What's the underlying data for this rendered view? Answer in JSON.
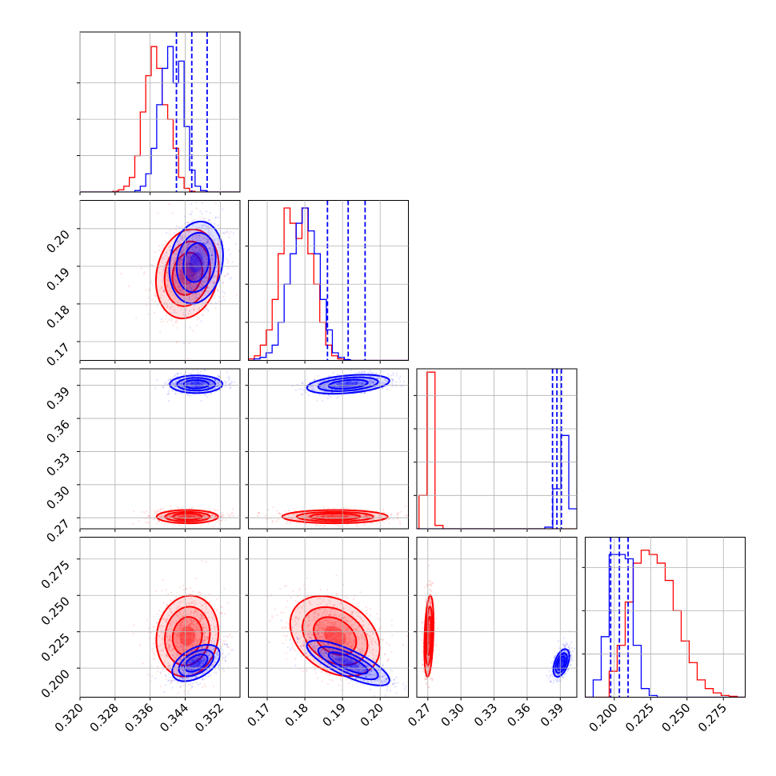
{
  "chart_data": {
    "type": "corner",
    "title": "",
    "grid": true,
    "colors": {
      "red": "#ff0000",
      "blue": "#0000ff"
    },
    "parameters": [
      {
        "range": [
          0.32,
          0.3565
        ],
        "ticks": [
          0.32,
          0.328,
          0.336,
          0.344,
          0.352
        ],
        "tick_labels": [
          "0.320",
          "0.328",
          "0.336",
          "0.344",
          "0.352"
        ]
      },
      {
        "range": [
          0.165,
          0.2075
        ],
        "ticks": [
          0.17,
          0.18,
          0.19,
          0.2
        ],
        "tick_labels": [
          "0.17",
          "0.18",
          "0.19",
          "0.20"
        ]
      },
      {
        "range": [
          0.26,
          0.405
        ],
        "ticks": [
          0.27,
          0.3,
          0.33,
          0.36,
          0.39
        ],
        "tick_labels": [
          "0.27",
          "0.30",
          "0.33",
          "0.36",
          "0.39"
        ]
      },
      {
        "range": [
          0.18,
          0.29
        ],
        "ticks": [
          0.2,
          0.225,
          0.25,
          0.275
        ],
        "tick_labels": [
          "0.200",
          "0.225",
          "0.250",
          "0.275"
        ]
      }
    ],
    "diagonal_ymax": [
      0.22,
      0.105,
      0.48,
      0.185
    ],
    "diagonal_yticks": [
      [
        0.05,
        0.1,
        0.15
      ],
      [
        0.025,
        0.05,
        0.075
      ],
      [
        0.1,
        0.2,
        0.3,
        0.4
      ],
      [
        0.05,
        0.1,
        0.15
      ]
    ],
    "histograms": [
      {
        "red": {
          "start": 0.3275,
          "width": 0.00125,
          "values": [
            0.001,
            0.003,
            0.008,
            0.02,
            0.05,
            0.11,
            0.16,
            0.2,
            0.17,
            0.12,
            0.1,
            0.06,
            0.02,
            0.005,
            0.001,
            0,
            0,
            0,
            0,
            0,
            0,
            0,
            0,
            0
          ]
        },
        "blue": {
          "start": 0.3325,
          "width": 0.00125,
          "values": [
            0.002,
            0.008,
            0.025,
            0.06,
            0.12,
            0.17,
            0.2,
            0.15,
            0.18,
            0.09,
            0.03,
            0.008,
            0.002,
            0,
            0,
            0,
            0,
            0,
            0,
            0
          ]
        }
      },
      {
        "red": {
          "start": 0.165,
          "width": 0.00158,
          "values": [
            0.001,
            0.003,
            0.01,
            0.02,
            0.04,
            0.07,
            0.1,
            0.09,
            0.08,
            0.1,
            0.07,
            0.05,
            0.025,
            0.01,
            0.003,
            0.001,
            0,
            0,
            0,
            0,
            0,
            0,
            0,
            0,
            0,
            0,
            0
          ]
        },
        "blue": {
          "start": 0.1665,
          "width": 0.0016,
          "values": [
            0.001,
            0.002,
            0.005,
            0.01,
            0.025,
            0.05,
            0.07,
            0.09,
            0.1,
            0.085,
            0.07,
            0.04,
            0.02,
            0.005,
            0.002,
            0.0005,
            0,
            0,
            0,
            0,
            0,
            0,
            0,
            0
          ]
        }
      },
      {
        "red": {
          "start": 0.262,
          "width": 0.00725,
          "values": [
            0.1,
            0.47,
            0.01,
            0,
            0,
            0,
            0,
            0,
            0,
            0,
            0,
            0,
            0,
            0,
            0,
            0,
            0,
            0,
            0,
            0
          ]
        },
        "blue": {
          "start": 0.26,
          "width": 0.00725,
          "values": [
            0,
            0,
            0,
            0,
            0,
            0,
            0,
            0,
            0,
            0,
            0,
            0,
            0,
            0,
            0,
            0,
            0.005,
            0.12,
            0.28,
            0.06
          ]
        }
      },
      {
        "red": {
          "start": 0.18,
          "width": 0.0055,
          "values": [
            0,
            0,
            0,
            0.03,
            0.06,
            0.11,
            0.155,
            0.17,
            0.165,
            0.155,
            0.135,
            0.1,
            0.065,
            0.04,
            0.02,
            0.01,
            0.005,
            0.002,
            0.001,
            0
          ]
        },
        "blue": {
          "start": 0.18,
          "width": 0.0055,
          "values": [
            0,
            0.02,
            0.07,
            0.165,
            0.165,
            0.16,
            0.06,
            0.01,
            0.002,
            0,
            0,
            0,
            0,
            0,
            0,
            0,
            0,
            0,
            0,
            0
          ]
        }
      }
    ],
    "quantiles_blue": [
      [
        0.342,
        0.3455,
        0.349
      ],
      [
        0.186,
        0.1915,
        0.196
      ],
      [
        0.383,
        0.387,
        0.391
      ],
      [
        0.1975,
        0.2035,
        0.2095
      ]
    ],
    "pairs": [
      {
        "col": 0,
        "row": 1,
        "red": {
          "center": [
            0.3445,
            0.188
          ],
          "sd": [
            0.0035,
            0.006
          ],
          "rot": -78,
          "cloud_n": 700
        },
        "blue": {
          "center": [
            0.3465,
            0.191
          ],
          "sd": [
            0.003,
            0.0055
          ],
          "rot": -80,
          "cloud_n": 700
        }
      },
      {
        "col": 0,
        "row": 2,
        "red": {
          "center": [
            0.3445,
            0.271
          ],
          "sd": [
            0.0035,
            0.003
          ],
          "rot": 0,
          "cloud_n": 700
        },
        "blue": {
          "center": [
            0.3465,
            0.391
          ],
          "sd": [
            0.003,
            0.004
          ],
          "rot": 0,
          "cloud_n": 700
        }
      },
      {
        "col": 1,
        "row": 2,
        "red": {
          "center": [
            0.188,
            0.271
          ],
          "sd": [
            0.007,
            0.003
          ],
          "rot": 0,
          "cloud_n": 700
        },
        "blue": {
          "center": [
            0.1915,
            0.391
          ],
          "sd": [
            0.0055,
            0.004
          ],
          "rot": -5,
          "cloud_n": 700
        }
      },
      {
        "col": 0,
        "row": 3,
        "red": {
          "center": [
            0.3445,
            0.222
          ],
          "sd": [
            0.0035,
            0.014
          ],
          "rot": -80,
          "cloud_n": 900
        },
        "blue": {
          "center": [
            0.3465,
            0.2035
          ],
          "sd": [
            0.003,
            0.005
          ],
          "rot": -30,
          "cloud_n": 700
        }
      },
      {
        "col": 1,
        "row": 3,
        "red": {
          "center": [
            0.188,
            0.222
          ],
          "sd": [
            0.0065,
            0.012
          ],
          "rot": 35,
          "cloud_n": 900
        },
        "blue": {
          "center": [
            0.1915,
            0.2035
          ],
          "sd": [
            0.006,
            0.0045
          ],
          "rot": 25,
          "cloud_n": 700
        }
      },
      {
        "col": 2,
        "row": 3,
        "red": {
          "center": [
            0.271,
            0.222
          ],
          "sd": [
            0.002,
            0.014
          ],
          "rot": -88,
          "cloud_n": 700
        },
        "blue": {
          "center": [
            0.391,
            0.2035
          ],
          "sd": [
            0.003,
            0.005
          ],
          "rot": -70,
          "cloud_n": 700
        }
      }
    ]
  }
}
